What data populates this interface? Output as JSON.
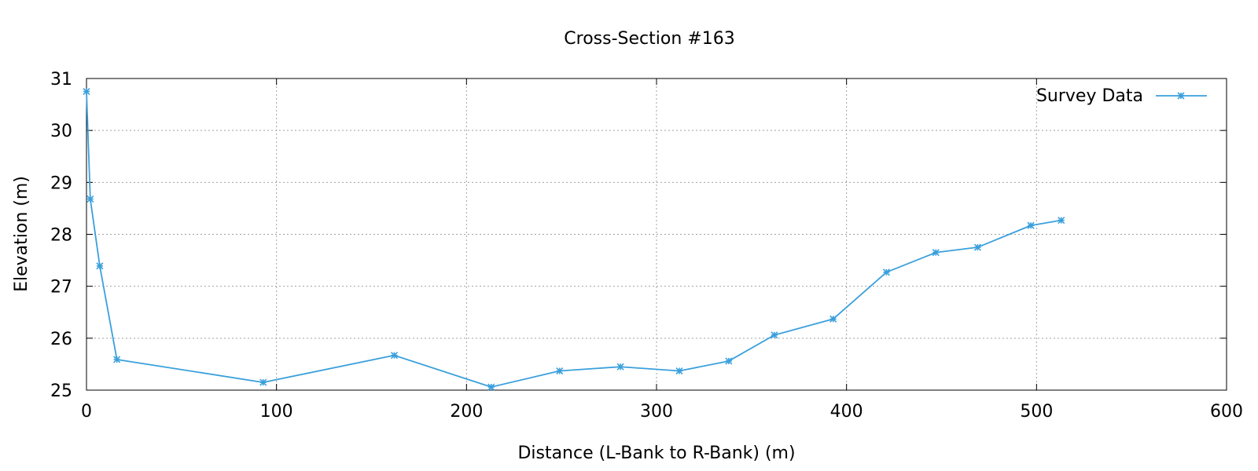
{
  "chart_data": {
    "type": "line",
    "title": "Cross-Section #163",
    "xlabel": "Distance (L-Bank to R-Bank) (m)",
    "ylabel": "Elevation (m)",
    "xlim": [
      0,
      600
    ],
    "ylim": [
      25,
      31
    ],
    "xticks": [
      0,
      100,
      200,
      300,
      400,
      500,
      600
    ],
    "yticks": [
      25,
      26,
      27,
      28,
      29,
      30,
      31
    ],
    "grid": true,
    "legend_position": "top-right",
    "series": [
      {
        "name": "Survey Data",
        "color": "#3aa0dc",
        "marker": "asterisk",
        "x": [
          0,
          2,
          7,
          16,
          93,
          162,
          213,
          249,
          281,
          312,
          338,
          362,
          393,
          421,
          447,
          469,
          497,
          513
        ],
        "y": [
          30.75,
          28.68,
          27.39,
          25.59,
          25.15,
          25.67,
          25.06,
          25.37,
          25.45,
          25.37,
          25.56,
          26.06,
          26.37,
          27.27,
          27.65,
          27.75,
          28.17,
          28.27
        ]
      }
    ]
  }
}
